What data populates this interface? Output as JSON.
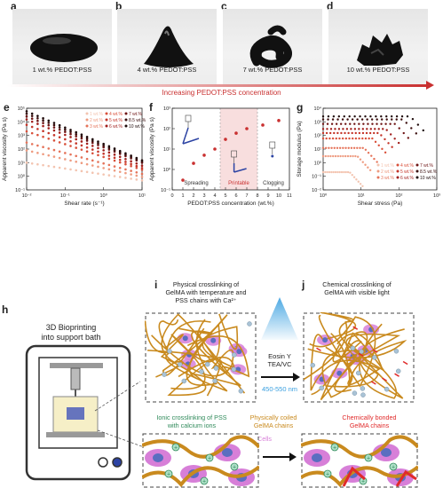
{
  "panels": {
    "a": {
      "label": "a",
      "caption": "1 wt.% PEDOT:PSS"
    },
    "b": {
      "label": "b",
      "caption": "4 wt.% PEDOT:PSS"
    },
    "c": {
      "label": "c",
      "caption": "7 wt.% PEDOT:PSS"
    },
    "d": {
      "label": "d",
      "caption": "10 wt.% PEDOT:PSS"
    },
    "e": {
      "label": "e"
    },
    "f": {
      "label": "f"
    },
    "g": {
      "label": "g"
    },
    "h": {
      "label": "h",
      "title_line1": "3D Bioprinting",
      "title_line2": "into support bath"
    },
    "i": {
      "label": "i",
      "line1": "Physical crosslinking of",
      "line2": "GelMA with temperature and",
      "line3": "PSS chains with Ca²⁺"
    },
    "j": {
      "label": "j",
      "line1": "Chemical crosslinking of",
      "line2": "GelMA with visible light"
    }
  },
  "concentration_arrow": "Increasing PEDOT:PSS concentration",
  "reaction": {
    "reagent1": "Eosin Y",
    "reagent2": "TEA/VC",
    "wavelength": "450-550 nm"
  },
  "annotations": {
    "ionic_line1": "Ionic crosslinking of PSS",
    "ionic_line2": "with calcium ions",
    "coiled_line1": "Physically coiled",
    "coiled_line2": "GelMA chains",
    "cells": "Cells",
    "bonded_line1": "Chemically bonded",
    "bonded_line2": "GelMA chains"
  },
  "colors": {
    "pedot_red": "#c93030",
    "gelma_orange": "#c98a1e",
    "cell_pink": "#d77fd8",
    "nucleus_blue": "#5a6ec0",
    "calcium_green": "#2f8a5a",
    "bond_red": "#e02a2a",
    "light_blue": "#3aa0e0"
  },
  "series_colors": [
    "#f3c4b0",
    "#ee9b80",
    "#e57359",
    "#d9503a",
    "#c43428",
    "#a11f1c",
    "#6e1414",
    "#1e0a0a"
  ],
  "chart_data": [
    {
      "id": "e",
      "type": "scatter",
      "xlabel": "Shear rate (s⁻¹)",
      "ylabel": "Apparent viscosity (Pa s)",
      "xscale": "log",
      "yscale": "log",
      "xlim": [
        0.01,
        30
      ],
      "ylim": [
        0.1,
        100000
      ],
      "x_ticks": [
        "10⁻²",
        "10⁻¹",
        "10⁰",
        "10¹"
      ],
      "y_ticks": [
        "10⁻¹",
        "10⁰",
        "10¹",
        "10²",
        "10³",
        "10⁴",
        "10⁵"
      ],
      "legend": "top-right",
      "series": [
        {
          "name": "1 wt.%",
          "start": 10,
          "end": 0.5
        },
        {
          "name": "2 wt.%",
          "start": 80,
          "end": 0.9
        },
        {
          "name": "3 wt.%",
          "start": 300,
          "end": 1.5
        },
        {
          "name": "4 wt.%",
          "start": 2000,
          "end": 3
        },
        {
          "name": "5 wt.%",
          "start": 6000,
          "end": 4
        },
        {
          "name": "6 wt.%",
          "start": 15000,
          "end": 6
        },
        {
          "name": "7 wt.%",
          "start": 25000,
          "end": 10
        },
        {
          "name": "8.5 wt.%",
          "start": 40000,
          "end": 12
        },
        {
          "name": "10 wt.%",
          "start": 60000,
          "end": 15
        }
      ]
    },
    {
      "id": "f",
      "type": "scatter",
      "xlabel": "PEDOT:PSS concentration (wt.%)",
      "ylabel": "Apparent viscosity (Pa s)",
      "yscale": "log",
      "xlim": [
        0,
        11
      ],
      "ylim": [
        0.1,
        1000
      ],
      "x_ticks": [
        "0",
        "1",
        "2",
        "3",
        "4",
        "5",
        "6",
        "7",
        "8",
        "9",
        "10",
        "11"
      ],
      "y_ticks": [
        "10⁻¹",
        "10⁰",
        "10¹",
        "10²",
        "10³"
      ],
      "regions": [
        {
          "label": "Spreading",
          "from": 0,
          "to": 4.5
        },
        {
          "label": "Printable",
          "from": 4.5,
          "to": 8
        },
        {
          "label": "Clogging",
          "from": 8,
          "to": 11
        }
      ],
      "x": [
        1,
        2,
        3,
        4,
        5,
        6,
        7,
        8.5,
        10
      ],
      "values": [
        0.3,
        2,
        5,
        10,
        30,
        60,
        100,
        150,
        250
      ]
    },
    {
      "id": "g",
      "type": "scatter",
      "xlabel": "Shear stress (Pa)",
      "ylabel": "Storage modulus (Pa)",
      "xscale": "log",
      "yscale": "log",
      "xlim": [
        1,
        1000
      ],
      "ylim": [
        0.01,
        10000
      ],
      "x_ticks": [
        "10⁰",
        "10¹",
        "10²",
        "10³"
      ],
      "y_ticks": [
        "10⁻²",
        "10⁻¹",
        "10⁰",
        "10¹",
        "10²",
        "10³",
        "10⁴"
      ],
      "legend": "bottom-right",
      "series": [
        {
          "name": "1 wt.%",
          "plateau": 0.2,
          "yield": 5
        },
        {
          "name": "2 wt.%",
          "plateau": 3,
          "yield": 8
        },
        {
          "name": "3 wt.%",
          "plateau": 12,
          "yield": 12
        },
        {
          "name": "4 wt.%",
          "plateau": 60,
          "yield": 20
        },
        {
          "name": "5 wt.%",
          "plateau": 150,
          "yield": 30
        },
        {
          "name": "6 wt.%",
          "plateau": 300,
          "yield": 45
        },
        {
          "name": "7 wt.%",
          "plateau": 700,
          "yield": 80
        },
        {
          "name": "8.5 wt.%",
          "plateau": 1500,
          "yield": 130
        },
        {
          "name": "10 wt.%",
          "plateau": 2500,
          "yield": 200
        }
      ]
    }
  ]
}
